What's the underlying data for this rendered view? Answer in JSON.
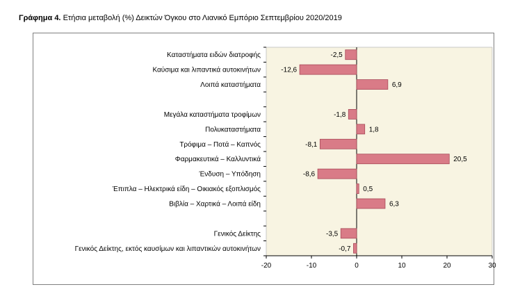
{
  "caption": {
    "lead": "Γράφημα 4.",
    "text": "Ετήσια μεταβολή (%) Δεικτών Όγκου στο Λιανικό Εμπόριο Σεπτεμβρίου 2020/2019"
  },
  "colors": {
    "bar_fill": "#d97b87",
    "bar_stroke": "#a84a59",
    "plot_bg": "#f8f4e2"
  },
  "chart_data": {
    "type": "bar",
    "orientation": "horizontal",
    "categories": [
      "Καταστήματα ειδών διατροφής",
      "Καύσιμα και λιπαντικά αυτοκινήτων",
      "Λοιπά καταστήματα",
      "",
      "Μεγάλα καταστήματα τροφίμων",
      "Πολυκαταστήματα",
      "Τρόφιμα – Ποτά – Καπνός",
      "Φαρμακευτικά – Καλλυντικά",
      "Ένδυση – Υπόδηση",
      "Έπιπλα – Ηλεκτρικά είδη – Οικιακός εξοπλισμός",
      "Βιβλία – Χαρτικά – Λοιπά είδη",
      "",
      "Γενικός Δείκτης",
      "Γενικός Δείκτης, εκτός καυσίμων και λιπαντικών αυτοκινήτων"
    ],
    "values": [
      -2.5,
      -12.6,
      6.9,
      null,
      -1.8,
      1.8,
      -8.1,
      20.5,
      -8.6,
      0.5,
      6.3,
      null,
      -3.5,
      -0.7
    ],
    "labels": [
      "-2,5",
      "-12,6",
      "6,9",
      "",
      "-1,8",
      "1,8",
      "-8,1",
      "20,5",
      "-8,6",
      "0,5",
      "6,3",
      "",
      "-3,5",
      "-0,7"
    ],
    "xlim": [
      -20,
      30
    ],
    "xticks": [
      -20,
      -10,
      0,
      10,
      20,
      30
    ],
    "grid": false,
    "title": "",
    "xlabel": "",
    "ylabel": ""
  }
}
